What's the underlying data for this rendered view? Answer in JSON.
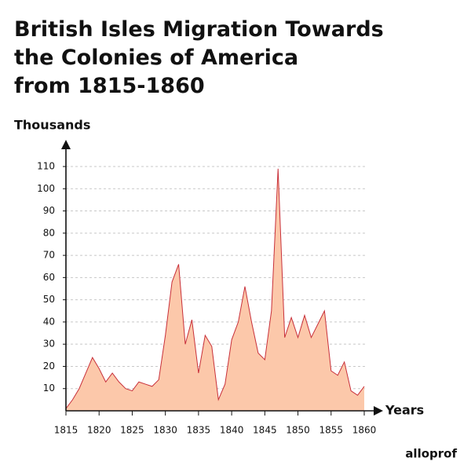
{
  "chart_data": {
    "type": "area",
    "title": [
      "British Isles Migration Towards",
      "the Colonies of America",
      "from 1815-1860"
    ],
    "y_label": "Thousands",
    "x_label": "Years",
    "brand": "alloprof",
    "x": [
      1815,
      1816,
      1817,
      1818,
      1819,
      1820,
      1821,
      1822,
      1823,
      1824,
      1825,
      1826,
      1827,
      1828,
      1829,
      1830,
      1831,
      1832,
      1833,
      1834,
      1835,
      1836,
      1837,
      1838,
      1839,
      1840,
      1841,
      1842,
      1843,
      1844,
      1845,
      1846,
      1847,
      1848,
      1849,
      1850,
      1851,
      1852,
      1853,
      1854,
      1855,
      1856,
      1857,
      1858,
      1859,
      1860
    ],
    "values": [
      1,
      5,
      10,
      17,
      24,
      19,
      13,
      17,
      13,
      10,
      9,
      13,
      12,
      11,
      14,
      34,
      58,
      66,
      30,
      41,
      17,
      34,
      29,
      5,
      12,
      32,
      40,
      56,
      40,
      26,
      23,
      45,
      109,
      33,
      42,
      33,
      43,
      33,
      39,
      45,
      18,
      16,
      22,
      9,
      7,
      11
    ],
    "fill": "#fcc8aa",
    "color": "#c8303a",
    "xlim": [
      1815,
      1860
    ],
    "xticks": [
      1815,
      1820,
      1825,
      1830,
      1835,
      1840,
      1845,
      1850,
      1855,
      1860
    ],
    "ylim": [
      0,
      110
    ],
    "yticks": [
      10,
      20,
      30,
      40,
      50,
      60,
      70,
      80,
      90,
      100,
      110
    ],
    "grid": true
  }
}
